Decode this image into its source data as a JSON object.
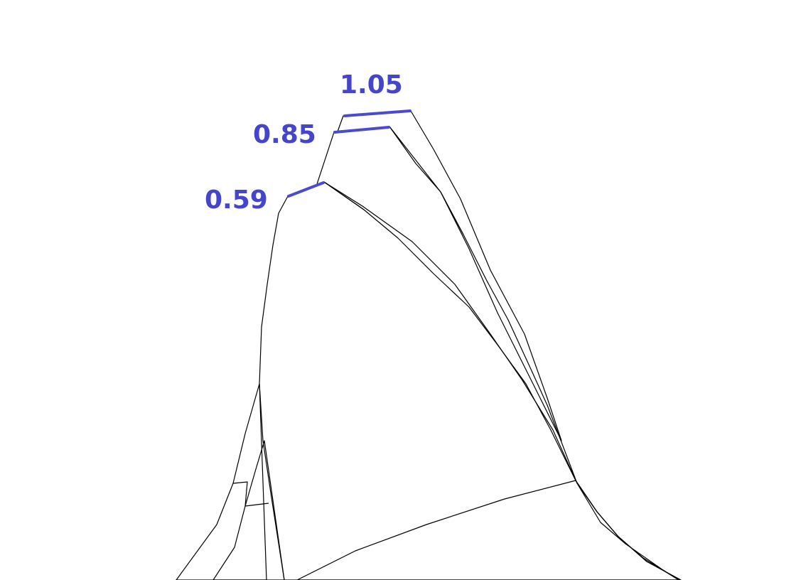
{
  "figure": {
    "labels": [
      {
        "text": "1.05",
        "layer": "red"
      },
      {
        "text": "0.85",
        "layer": "yellow"
      },
      {
        "text": "0.59",
        "layer": "green"
      }
    ],
    "colors": {
      "label_text": "#4444cc",
      "marker_line": "#4b4bd0",
      "red_surface": "#e01515",
      "red_dark": "#b80f0f",
      "yellow_surface": "#eded22",
      "yellow_dark": "#cfc80a",
      "green_surface": "#7ddd7d",
      "green_dark": "#5cbf5c",
      "outline": "#000000",
      "background": "#ffffff"
    }
  }
}
